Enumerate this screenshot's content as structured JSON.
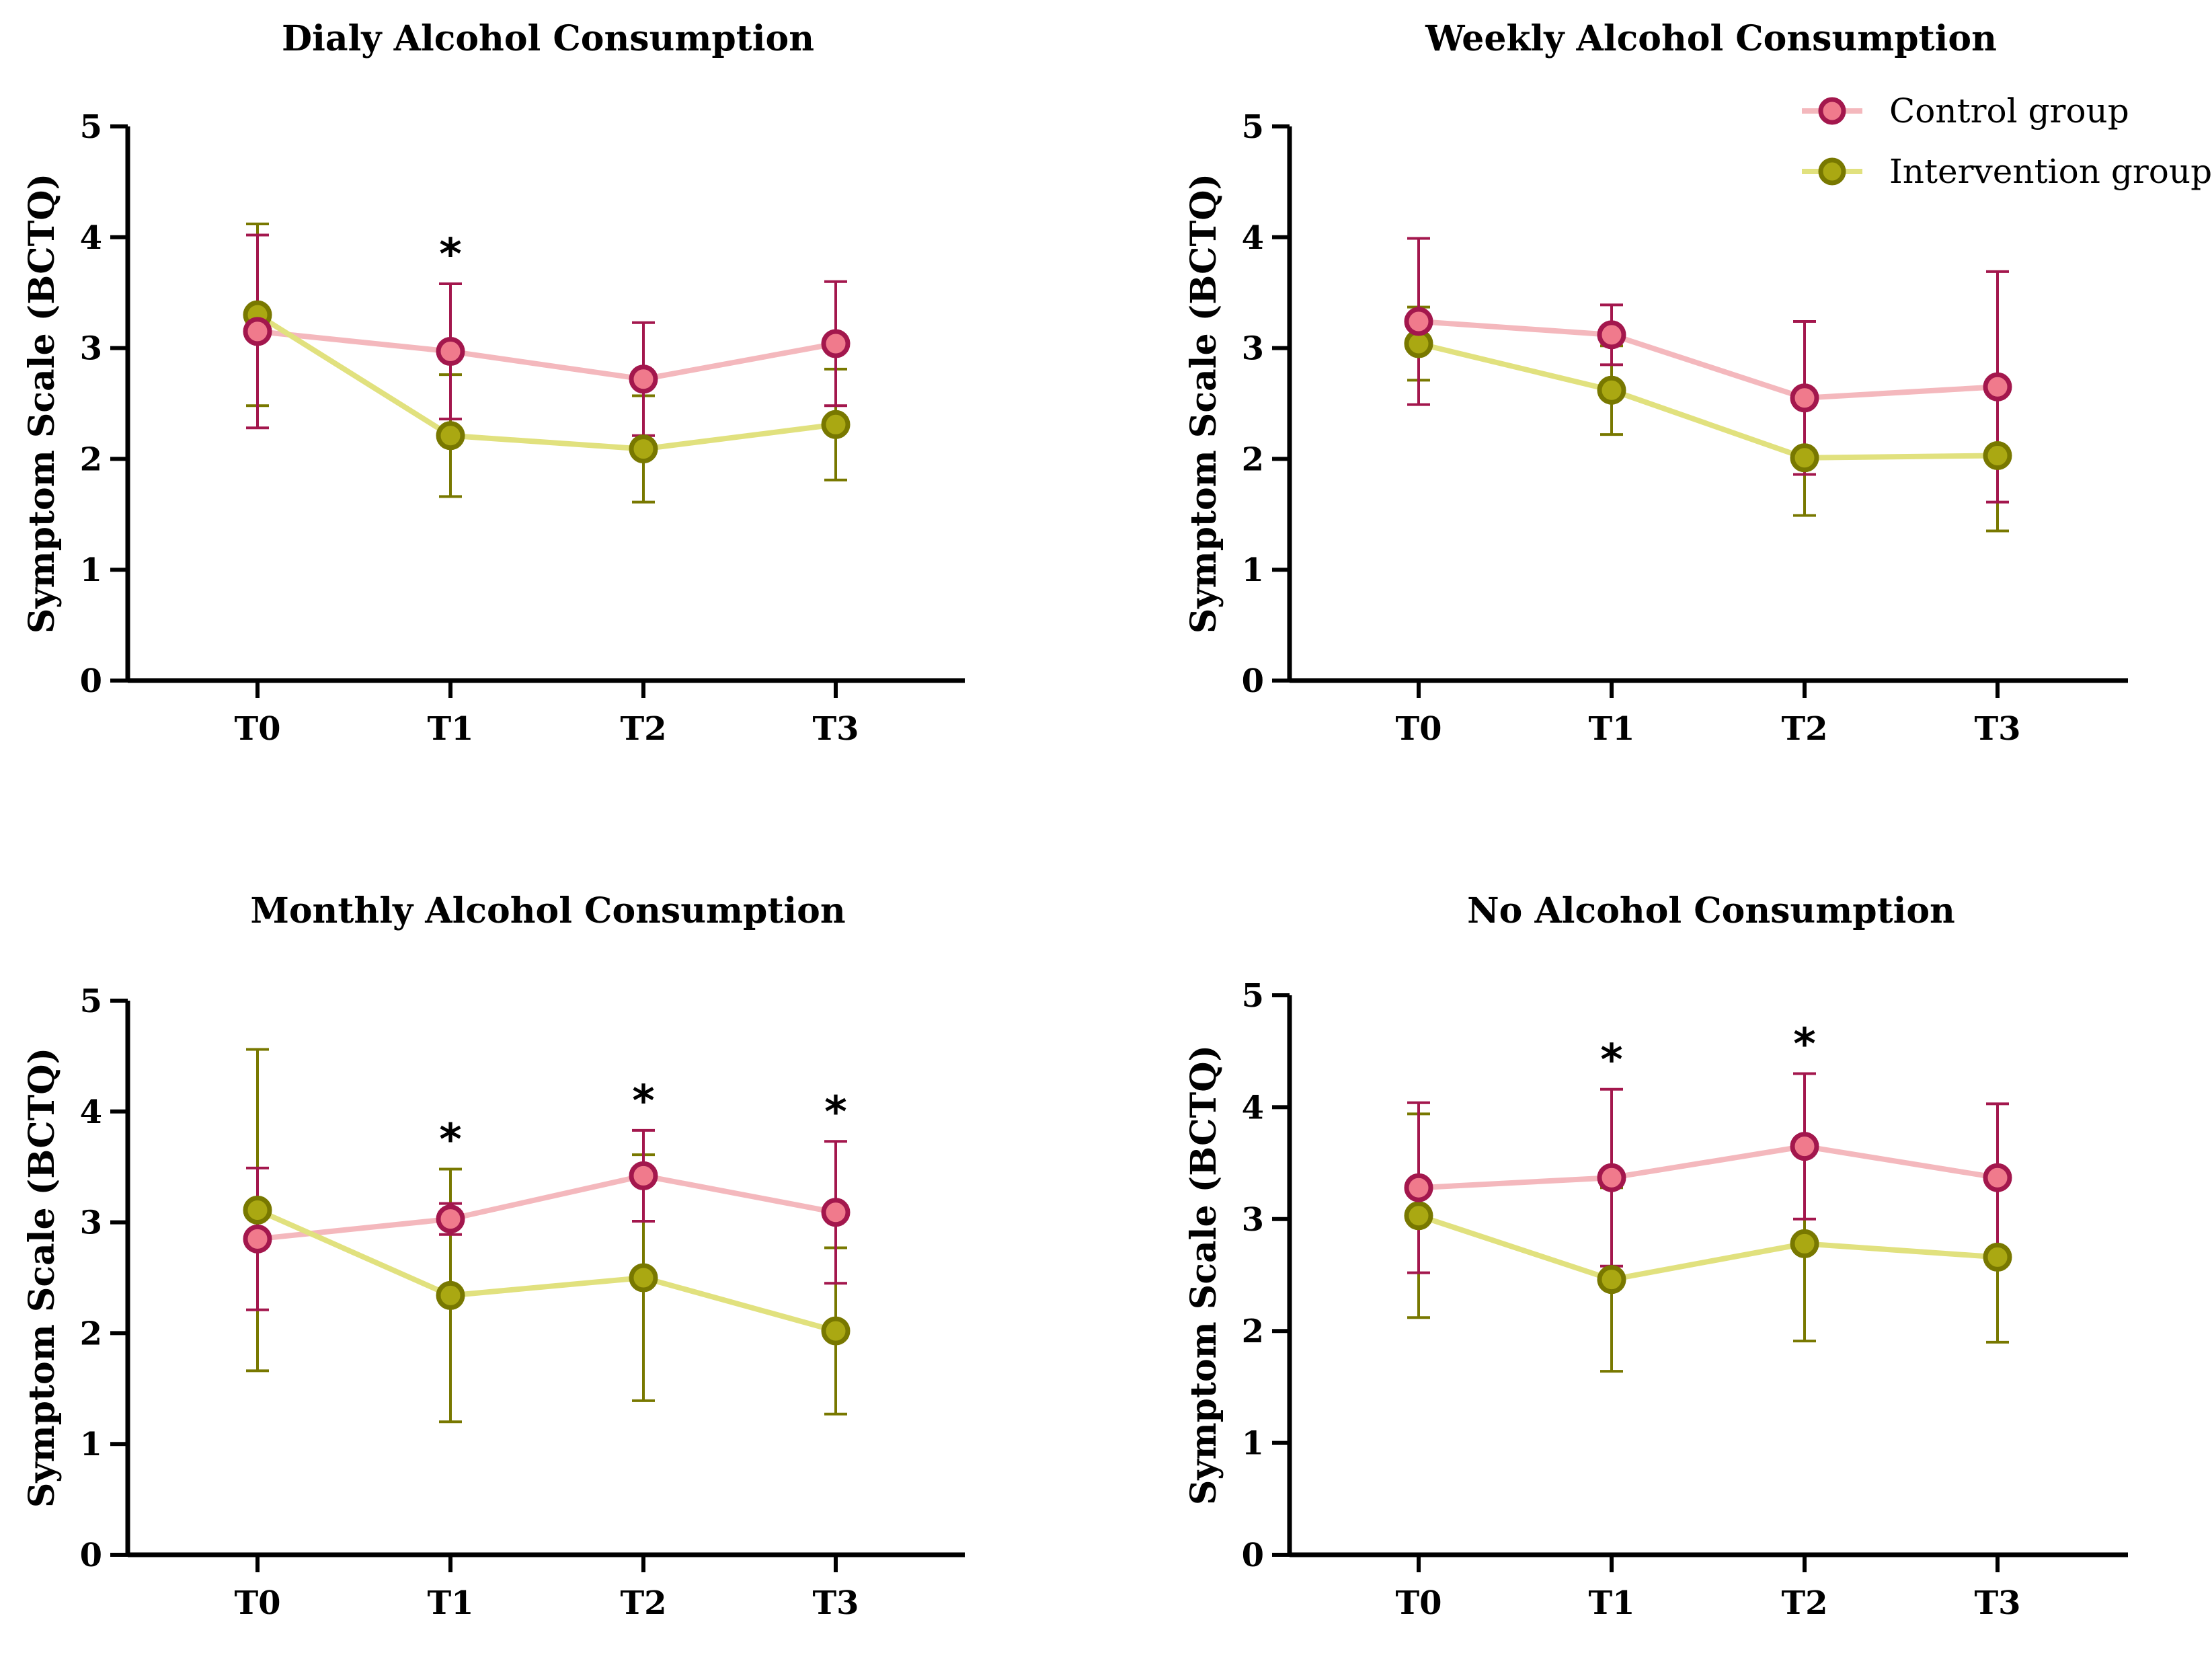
{
  "colors": {
    "control_line": "#f4b8bd",
    "control_marker_fill": "#f07a8c",
    "control_marker_edge": "#a3174d",
    "intervention_line": "#e1e17e",
    "intervention_marker_fill": "#aaa812",
    "intervention_marker_edge": "#787800",
    "axis": "#000000"
  },
  "legend": {
    "control": "Control group",
    "intervention": "Intervention group"
  },
  "chart_data": [
    {
      "type": "line",
      "title": "Dialy Alcohol Consumption",
      "xlabel": "",
      "ylabel": "Symptom Scale (BCTQ)",
      "ylim": [
        0,
        5
      ],
      "yticks": [
        "0",
        "1",
        "2",
        "3",
        "4",
        "5"
      ],
      "categories": [
        "T0",
        "T1",
        "T2",
        "T3"
      ],
      "series": [
        {
          "name": "Control group",
          "values": [
            3.15,
            2.97,
            2.72,
            3.04
          ],
          "errors": [
            0.87,
            0.61,
            0.51,
            0.56
          ]
        },
        {
          "name": "Intervention group",
          "values": [
            3.3,
            2.21,
            2.09,
            2.31
          ],
          "errors": [
            0.82,
            0.55,
            0.48,
            0.5
          ]
        }
      ],
      "significance": [
        "",
        "*",
        "",
        ""
      ]
    },
    {
      "type": "line",
      "title": "Weekly Alcohol Consumption",
      "xlabel": "",
      "ylabel": "Symptom Scale (BCTQ)",
      "ylim": [
        0,
        5
      ],
      "yticks": [
        "0",
        "1",
        "2",
        "3",
        "4",
        "5"
      ],
      "categories": [
        "T0",
        "T1",
        "T2",
        "T3"
      ],
      "series": [
        {
          "name": "Control group",
          "values": [
            3.24,
            3.12,
            2.55,
            2.65
          ],
          "errors": [
            0.75,
            0.27,
            0.69,
            1.04
          ]
        },
        {
          "name": "Intervention group",
          "values": [
            3.04,
            2.62,
            2.01,
            2.03
          ],
          "errors": [
            0.33,
            0.4,
            0.52,
            0.68
          ]
        }
      ],
      "significance": [
        "",
        "",
        "",
        ""
      ]
    },
    {
      "type": "line",
      "title": "Monthly Alcohol Consumption",
      "xlabel": "",
      "ylabel": "Symptom Scale (BCTQ)",
      "ylim": [
        0,
        5
      ],
      "yticks": [
        "0",
        "1",
        "2",
        "3",
        "4",
        "5"
      ],
      "categories": [
        "T0",
        "T1",
        "T2",
        "T3"
      ],
      "series": [
        {
          "name": "Control group",
          "values": [
            2.85,
            3.03,
            3.42,
            3.09
          ],
          "errors": [
            0.64,
            0.14,
            0.41,
            0.64
          ]
        },
        {
          "name": "Intervention group",
          "values": [
            3.11,
            2.34,
            2.5,
            2.02
          ],
          "errors": [
            1.45,
            1.14,
            1.11,
            0.75
          ]
        }
      ],
      "significance": [
        "",
        "*",
        "*",
        "*"
      ]
    },
    {
      "type": "line",
      "title": "No Alcohol Consumption",
      "xlabel": "",
      "ylabel": "Symptom Scale (BCTQ)",
      "ylim": [
        0,
        5
      ],
      "yticks": [
        "0",
        "1",
        "2",
        "3",
        "4",
        "5"
      ],
      "categories": [
        "T0",
        "T1",
        "T2",
        "T3"
      ],
      "series": [
        {
          "name": "Control group",
          "values": [
            3.28,
            3.37,
            3.65,
            3.37
          ],
          "errors": [
            0.76,
            0.79,
            0.65,
            0.66
          ]
        },
        {
          "name": "Intervention group",
          "values": [
            3.03,
            2.46,
            2.78,
            2.66
          ],
          "errors": [
            0.91,
            0.82,
            0.87,
            0.76
          ]
        }
      ],
      "significance": [
        "",
        "*",
        "*",
        ""
      ]
    }
  ]
}
